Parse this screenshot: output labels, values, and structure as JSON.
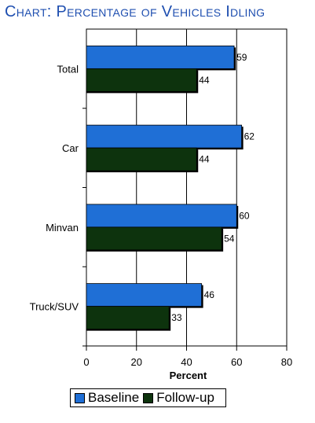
{
  "title": "Chart: Percentage of Vehicles Idling",
  "chart_data": {
    "type": "bar",
    "orientation": "horizontal",
    "title": "Chart: Percentage of Vehicles Idling",
    "xlabel": "Percent",
    "ylabel": "",
    "categories": [
      "Total",
      "Car",
      "Minvan",
      "Truck/SUV"
    ],
    "series": [
      {
        "name": "Baseline",
        "values": [
          59,
          62,
          60,
          46
        ],
        "color": "#1f6fd6"
      },
      {
        "name": "Follow-up",
        "values": [
          44,
          44,
          54,
          33
        ],
        "color": "#0d330d"
      }
    ],
    "xlim": [
      0,
      80
    ],
    "xticks": [
      "0",
      "20",
      "40",
      "60",
      "80"
    ],
    "grid": true,
    "legend": "bottom"
  }
}
